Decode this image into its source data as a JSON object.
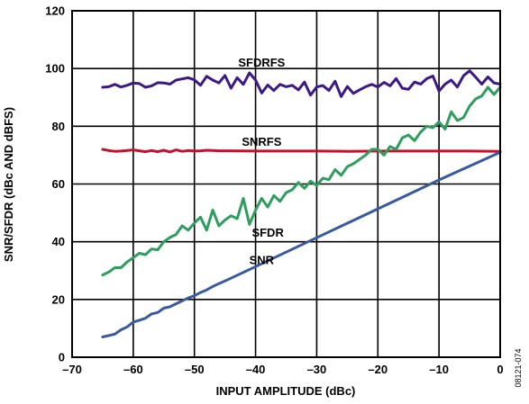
{
  "chart_data": {
    "type": "line",
    "xlabel": "INPUT AMPLITUDE (dBc)",
    "ylabel": "SNR/SFDR (dBc AND dBFS)",
    "xlim": [
      -70,
      0
    ],
    "ylim": [
      0,
      120
    ],
    "x_ticks": [
      -70,
      -60,
      -50,
      -40,
      -30,
      -20,
      -10,
      0
    ],
    "x_tick_labels": [
      "–70",
      "–60",
      "–50",
      "–40",
      "–30",
      "–20",
      "–10",
      "0"
    ],
    "y_ticks": [
      0,
      20,
      40,
      60,
      80,
      100,
      120
    ],
    "y_tick_labels": [
      "0",
      "20",
      "40",
      "60",
      "80",
      "100",
      "120"
    ],
    "grid": true,
    "figure_number": "08121-074",
    "series": [
      {
        "name": "SFDRFS",
        "color": "#3b1a87",
        "x": [
          -65,
          -64,
          -63,
          -62,
          -61,
          -60,
          -59,
          -58,
          -57,
          -56,
          -55,
          -54,
          -53,
          -52,
          -51,
          -50,
          -49,
          -48,
          -47,
          -46,
          -45,
          -44,
          -43,
          -42,
          -41,
          -40,
          -39,
          -38,
          -37,
          -36,
          -35,
          -34,
          -33,
          -32,
          -31,
          -30,
          -29,
          -28,
          -27,
          -26,
          -25,
          -24,
          -23,
          -22,
          -21,
          -20,
          -19,
          -18,
          -17,
          -16,
          -15,
          -14,
          -13,
          -12,
          -11,
          -10,
          -9,
          -8,
          -7,
          -6,
          -5,
          -4,
          -3,
          -2,
          -1,
          0
        ],
        "y": [
          93.5,
          93.7,
          94.5,
          93.6,
          94.2,
          95,
          94.8,
          93.5,
          94,
          95.1,
          95,
          94.6,
          96,
          96.4,
          96.8,
          96.1,
          94.2,
          97.3,
          96,
          95,
          97.6,
          93.2,
          96.8,
          94.5,
          98.5,
          96,
          91.5,
          94.3,
          92.4,
          94.5,
          93.7,
          94.2,
          92.6,
          95.3,
          90.8,
          93.6,
          94.1,
          92.4,
          95.6,
          90.3,
          93.8,
          91.4,
          92.6,
          93.7,
          94.5,
          93.6,
          95.2,
          94,
          96.5,
          93.2,
          92.8,
          95.3,
          94.6,
          96.5,
          97.4,
          92.2,
          94.6,
          96,
          93.6,
          97.5,
          99.2,
          97,
          94.6,
          97.1,
          95,
          94.6
        ]
      },
      {
        "name": "SNRFS",
        "color": "#c8102e",
        "x": [
          -65,
          -64,
          -63,
          -62,
          -61,
          -60,
          -59,
          -58,
          -57,
          -56,
          -55,
          -54,
          -53,
          -52,
          -51,
          -50,
          -49,
          -48,
          -47,
          -46,
          -45,
          -40,
          -35,
          -30,
          -25,
          -20,
          -15,
          -10,
          -5,
          0
        ],
        "y": [
          72,
          71.6,
          71.3,
          71.4,
          71.6,
          71.8,
          71.5,
          71.2,
          71.6,
          71.2,
          71.7,
          71.1,
          71.8,
          71.3,
          71.6,
          71.4,
          71.5,
          71.7,
          71.6,
          71.5,
          71.5,
          71.4,
          71.4,
          71.4,
          71.3,
          71.4,
          71.4,
          71.4,
          71.4,
          71.3
        ]
      },
      {
        "name": "SFDR",
        "color": "#2e9e5e",
        "x": [
          -65,
          -64,
          -63,
          -62,
          -61,
          -60,
          -59,
          -58,
          -57,
          -56,
          -55,
          -54,
          -53,
          -52,
          -51,
          -50,
          -49,
          -48,
          -47,
          -46,
          -45,
          -44,
          -43,
          -42,
          -41,
          -40,
          -39,
          -38,
          -37,
          -36,
          -35,
          -34,
          -33,
          -32,
          -31,
          -30,
          -29,
          -28,
          -27,
          -26,
          -25,
          -24,
          -23,
          -22,
          -21,
          -20,
          -19,
          -18,
          -17,
          -16,
          -15,
          -14,
          -13,
          -12,
          -11,
          -10,
          -9,
          -8,
          -7,
          -6,
          -5,
          -4,
          -3,
          -2,
          -1,
          0
        ],
        "y": [
          28.5,
          29.5,
          31,
          31,
          33,
          34.5,
          36,
          35.5,
          37.5,
          37.2,
          40,
          41.5,
          42.5,
          45.5,
          44,
          46.5,
          48.5,
          44,
          51,
          45.5,
          47.5,
          49,
          48,
          55,
          46,
          51,
          55,
          52,
          56,
          54,
          57,
          58,
          60.5,
          58.5,
          61,
          59.5,
          62,
          61.5,
          65,
          63,
          66,
          67,
          68.5,
          70,
          72,
          72,
          70,
          73,
          72,
          76,
          77,
          75,
          78,
          80,
          79.5,
          81.5,
          79,
          85,
          82,
          83,
          87,
          89.5,
          90.5,
          93.5,
          91,
          93.5
        ]
      },
      {
        "name": "SNR",
        "color": "#3a5a9e",
        "x": [
          -65,
          -64,
          -63,
          -62,
          -61,
          -60,
          -59,
          -58,
          -57,
          -56,
          -55,
          -54,
          -53,
          -52,
          -51,
          -50,
          -49,
          -48,
          -47,
          -46,
          -45,
          -40,
          -35,
          -30,
          -25,
          -20,
          -15,
          -10,
          -5,
          0
        ],
        "y": [
          7,
          7.5,
          8,
          9.5,
          10.5,
          12.2,
          12.8,
          13.5,
          15,
          15.5,
          17,
          17.5,
          18.5,
          19.5,
          20.5,
          21.3,
          22.4,
          23.3,
          24.5,
          25.5,
          26.4,
          31.4,
          36.4,
          41.4,
          46.4,
          51.4,
          56.4,
          61.4,
          66.2,
          71
        ]
      }
    ],
    "annotations": [
      {
        "series": "SFDRFS",
        "text": "SFDRFS",
        "x": -39,
        "y": 102
      },
      {
        "series": "SNRFS",
        "text": "SNRFS",
        "x": -39,
        "y": 74.5
      },
      {
        "series": "SFDR",
        "text": "SFDR",
        "x": -38,
        "y": 43
      },
      {
        "series": "SNR",
        "text": "SNR",
        "x": -39,
        "y": 33.5
      }
    ]
  }
}
